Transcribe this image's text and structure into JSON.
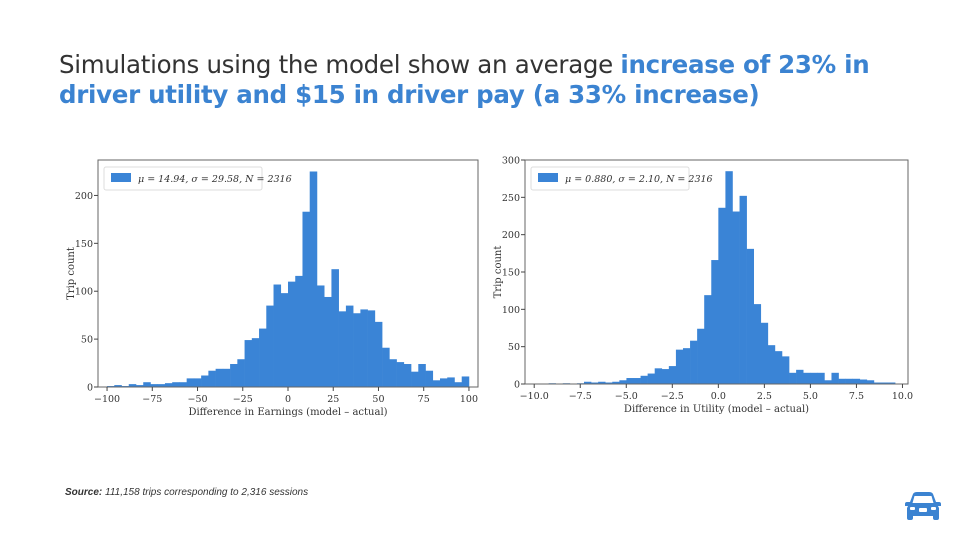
{
  "title": {
    "plain": "Simulations using the model show an average ",
    "highlight": "increase of 23% in driver utility and $15 in driver pay (a 33% increase)"
  },
  "colors": {
    "accent": "#3b83d1",
    "bar": "#3a84d6",
    "text": "#333333"
  },
  "chart_data": [
    {
      "type": "bar",
      "subtype": "histogram",
      "legend": "μ = 14.94, σ = 29.58, N = 2316",
      "legend_placement": "top-left",
      "xlabel": "Difference in Earnings (model – actual)",
      "ylabel": "Trip count",
      "xlim": [
        -105,
        105
      ],
      "ylim": [
        0,
        237
      ],
      "xticks": [
        -100,
        -75,
        -50,
        -25,
        0,
        25,
        50,
        75,
        100
      ],
      "xtick_labels": [
        "−100",
        "−75",
        "−50",
        "−25",
        "0",
        "25",
        "50",
        "75",
        "100"
      ],
      "yticks": [
        0,
        50,
        100,
        150,
        200
      ],
      "bin_start": -100,
      "bin_width": 4,
      "values": [
        1,
        2,
        1,
        3,
        2,
        5,
        3,
        3,
        4,
        5,
        5,
        9,
        9,
        12,
        17,
        19,
        19,
        24,
        29,
        49,
        51,
        61,
        85,
        107,
        98,
        110,
        116,
        183,
        225,
        106,
        94,
        123,
        79,
        85,
        77,
        81,
        80,
        68,
        41,
        29,
        26,
        24,
        16,
        24,
        17,
        7,
        9,
        10,
        5,
        11
      ],
      "grid": false
    },
    {
      "type": "bar",
      "subtype": "histogram",
      "legend": "μ = 0.880, σ = 2.10, N = 2316",
      "legend_placement": "top-left",
      "xlabel": "Difference in Utility (model – actual)",
      "ylabel": "Trip count",
      "xlim": [
        -10.5,
        10.3
      ],
      "ylim": [
        0,
        300
      ],
      "xticks": [
        -10.0,
        -7.5,
        -5.0,
        -2.5,
        0.0,
        2.5,
        5.0,
        7.5,
        10.0
      ],
      "xtick_labels": [
        "−10.0",
        "−7.5",
        "−5.0",
        "−2.5",
        "0.0",
        "2.5",
        "5.0",
        "7.5",
        "10.0"
      ],
      "yticks": [
        0,
        50,
        100,
        150,
        200,
        250,
        300
      ],
      "bin_start": -9.6,
      "bin_width": 0.384,
      "values": [
        0,
        1,
        0,
        1,
        0,
        1,
        3,
        2,
        3,
        2,
        3,
        5,
        8,
        8,
        11,
        14,
        21,
        20,
        24,
        46,
        48,
        58,
        74,
        119,
        166,
        236,
        285,
        231,
        252,
        181,
        107,
        82,
        52,
        44,
        37,
        15,
        19,
        15,
        15,
        15,
        5,
        15,
        7,
        7,
        7,
        6,
        5,
        2,
        2,
        2
      ],
      "grid": false
    }
  ],
  "footer": {
    "source_label": "Source:",
    "source_text": " 111,158 trips corresponding to 2,316 sessions"
  },
  "logo": {
    "icon": "car-icon"
  }
}
